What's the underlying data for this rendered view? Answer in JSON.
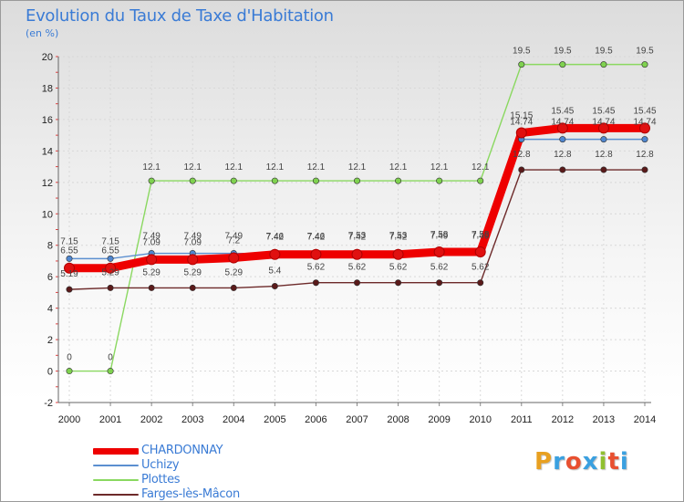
{
  "chart_data": {
    "type": "line",
    "title": "Evolution du Taux de Taxe d'Habitation",
    "ylabel": "(en %)",
    "x": [
      "2000",
      "2001",
      "2002",
      "2003",
      "2004",
      "2005",
      "2006",
      "2007",
      "2008",
      "2009",
      "2010",
      "2011",
      "2012",
      "2013",
      "2014"
    ],
    "ylim": [
      -2,
      20
    ],
    "yticks": [
      "-2",
      "0",
      "2",
      "4",
      "6",
      "8",
      "10",
      "12",
      "14",
      "16",
      "18",
      "20"
    ],
    "series": [
      {
        "name": "CHARDONNAY",
        "color": "#ee0000",
        "marker": "#e01010",
        "values": [
          6.55,
          6.55,
          7.09,
          7.09,
          7.2,
          7.42,
          7.42,
          7.42,
          7.42,
          7.58,
          7.58,
          15.15,
          15.45,
          15.45,
          15.45
        ],
        "labels": [
          "6.55",
          "6.55",
          "7.09",
          "7.09",
          "7.2",
          "7.42",
          "7.42",
          "7.42",
          "7.42",
          "7.58",
          "7.58",
          "15.15",
          "15.45",
          "15.45",
          "15.45"
        ]
      },
      {
        "name": "Uchizy",
        "color": "#5b8fd0",
        "marker": "#4f86cf",
        "values": [
          7.15,
          7.15,
          7.49,
          7.49,
          7.49,
          7.46,
          7.46,
          7.53,
          7.53,
          7.49,
          7.49,
          14.74,
          14.74,
          14.74,
          14.74
        ],
        "labels": [
          "7.15",
          "7.15",
          "7.49",
          "7.49",
          "7.49",
          "7.46",
          "7.46",
          "7.53",
          "7.53",
          "7.49",
          "7.49",
          "14.74",
          "14.74",
          "14.74",
          "14.74"
        ]
      },
      {
        "name": "Plottes",
        "color": "#8ad860",
        "marker": "#7fd24f",
        "values": [
          0,
          0,
          12.1,
          12.1,
          12.1,
          12.1,
          12.1,
          12.1,
          12.1,
          12.1,
          12.1,
          19.5,
          19.5,
          19.5,
          19.5
        ],
        "labels": [
          "0",
          "0",
          "12.1",
          "12.1",
          "12.1",
          "12.1",
          "12.1",
          "12.1",
          "12.1",
          "12.1",
          "12.1",
          "19.5",
          "19.5",
          "19.5",
          "19.5"
        ]
      },
      {
        "name": "Farges-lès-Mâcon",
        "color": "#6d2a2a",
        "marker": "#5a1a1a",
        "values": [
          5.19,
          5.29,
          5.29,
          5.29,
          5.29,
          5.4,
          5.62,
          5.62,
          5.62,
          5.62,
          5.62,
          12.8,
          12.8,
          12.8,
          12.8
        ],
        "labels": [
          "5.19",
          "5.29",
          "5.29",
          "5.29",
          "5.29",
          "5.4",
          "5.62",
          "5.62",
          "5.62",
          "5.62",
          "5.62",
          "12.8",
          "12.8",
          "12.8",
          "12.8"
        ]
      }
    ]
  },
  "logo": {
    "letters": [
      "P",
      "r",
      "o",
      "x",
      "i",
      "t",
      "i"
    ],
    "colors": [
      "#e8a020",
      "#3aa0e0",
      "#e85030",
      "#3aa0e0",
      "#90c030",
      "#e85030",
      "#3aa0e0"
    ]
  }
}
